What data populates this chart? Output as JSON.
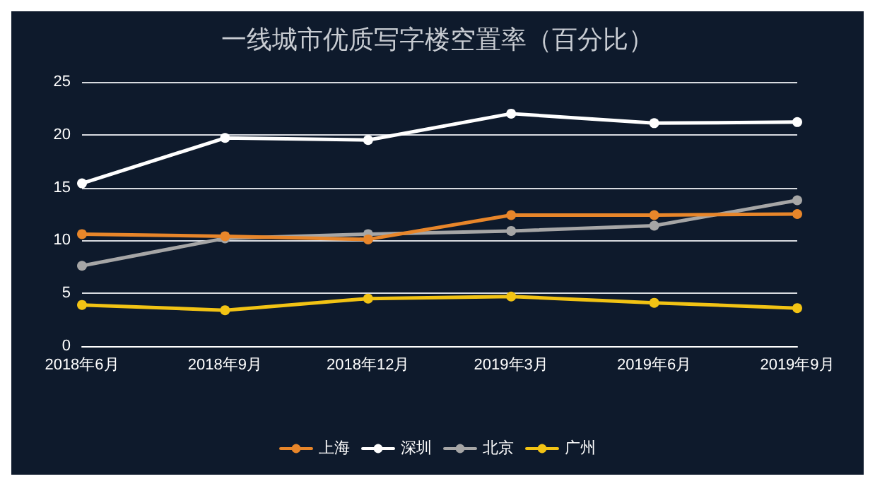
{
  "chart_data": {
    "type": "line",
    "title": "一线城市优质写字楼空置率（百分比）",
    "categories": [
      "2018年6月",
      "2018年9月",
      "2018年12月",
      "2019年3月",
      "2019年6月",
      "2019年9月"
    ],
    "series": [
      {
        "name": "上海",
        "color": "#e8862a",
        "values": [
          10.6,
          10.4,
          10.1,
          12.4,
          12.4,
          12.5
        ]
      },
      {
        "name": "深圳",
        "color": "#ffffff",
        "values": [
          15.4,
          19.7,
          19.5,
          22.0,
          21.1,
          21.2
        ]
      },
      {
        "name": "北京",
        "color": "#a6a6a6",
        "values": [
          7.6,
          10.2,
          10.6,
          10.9,
          11.4,
          13.8
        ]
      },
      {
        "name": "广州",
        "color": "#f2c314",
        "values": [
          3.9,
          3.4,
          4.5,
          4.7,
          4.1,
          3.6
        ]
      }
    ],
    "ylim": [
      0,
      25
    ],
    "yticks": [
      0,
      5,
      10,
      15,
      20,
      25
    ],
    "grid": "y",
    "legend": "bottom",
    "marker": "circle",
    "line_style": "solid"
  }
}
